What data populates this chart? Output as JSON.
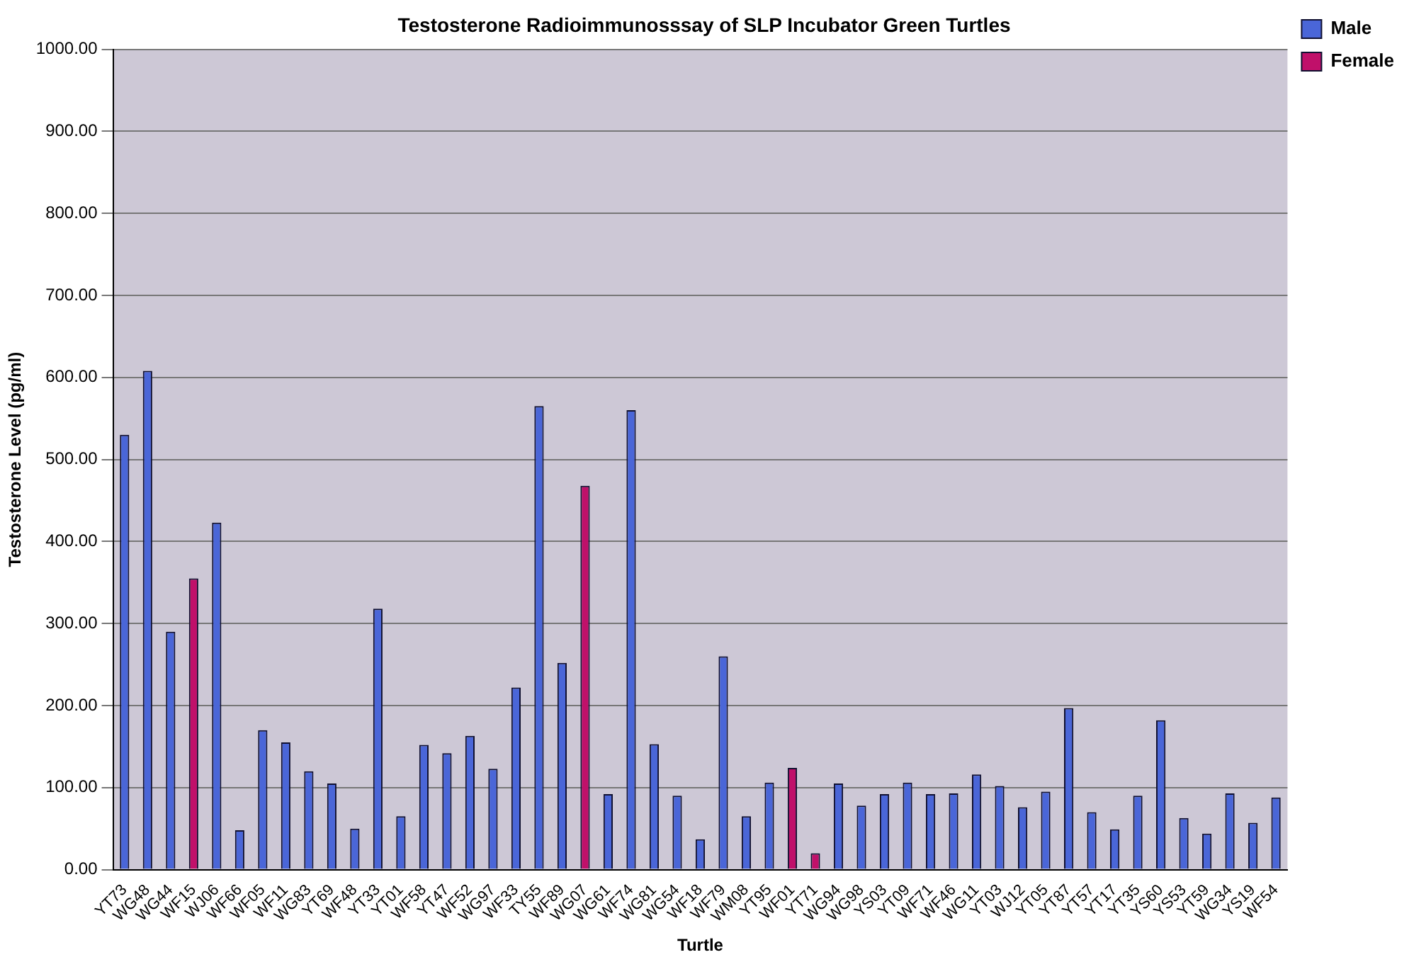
{
  "chart_data": {
    "type": "bar",
    "title": "Testosterone Radioimmunosssay of SLP Incubator Green Turtles",
    "xlabel": "Turtle",
    "ylabel": "Testosterone Level (pg/ml)",
    "categories": [
      "YT73",
      "WG48",
      "WG44",
      "WF15",
      "WJ06",
      "WF66",
      "WF05",
      "WF11",
      "WG83",
      "YT69",
      "WF48",
      "YT33",
      "YT01",
      "WF58",
      "YT47",
      "WF52",
      "WG97",
      "WF33",
      "TY55",
      "WF89",
      "WG07",
      "WG61",
      "WF74",
      "WG81",
      "WG54",
      "WF18",
      "WF79",
      "WM08",
      "YT95",
      "WF01",
      "YT71",
      "WG94",
      "WG98",
      "YS03",
      "YT09",
      "WF71",
      "WF46",
      "WG11",
      "YT03",
      "WJ12",
      "YT05",
      "YT87",
      "YT57",
      "YT17",
      "YT35",
      "YS60",
      "YS53",
      "YT59",
      "WG34",
      "YS19",
      "WF54"
    ],
    "series": [
      {
        "name": "Male",
        "color": "#4a66d8",
        "values": [
          530,
          608,
          290,
          null,
          423,
          48,
          170,
          155,
          120,
          105,
          50,
          318,
          65,
          152,
          142,
          163,
          123,
          222,
          565,
          252,
          null,
          92,
          560,
          153,
          90,
          37,
          260,
          65,
          106,
          null,
          null,
          105,
          78,
          92,
          106,
          92,
          93,
          116,
          102,
          76,
          95,
          197,
          70,
          49,
          90,
          182,
          63,
          44,
          93,
          57,
          88
        ]
      },
      {
        "name": "Female",
        "color": "#c0106a",
        "values": [
          null,
          null,
          null,
          355,
          null,
          null,
          null,
          null,
          null,
          null,
          null,
          null,
          null,
          null,
          null,
          null,
          null,
          null,
          null,
          null,
          468,
          null,
          null,
          null,
          null,
          null,
          null,
          null,
          null,
          124,
          20,
          null,
          null,
          null,
          null,
          null,
          null,
          null,
          null,
          null,
          null,
          null,
          null,
          null,
          null,
          null,
          null,
          null,
          null,
          null,
          null
        ]
      }
    ],
    "ylim": [
      0,
      1000
    ],
    "yticks": [
      {
        "value": 0,
        "label": "0.00"
      },
      {
        "value": 100,
        "label": "100.00"
      },
      {
        "value": 200,
        "label": "200.00"
      },
      {
        "value": 300,
        "label": "300.00"
      },
      {
        "value": 400,
        "label": "400.00"
      },
      {
        "value": 500,
        "label": "500.00"
      },
      {
        "value": 600,
        "label": "600.00"
      },
      {
        "value": 700,
        "label": "700.00"
      },
      {
        "value": 800,
        "label": "800.00"
      },
      {
        "value": 900,
        "label": "900.00"
      },
      {
        "value": 1000,
        "label": "1000.00"
      }
    ],
    "grid": "y",
    "legend": "top right"
  }
}
